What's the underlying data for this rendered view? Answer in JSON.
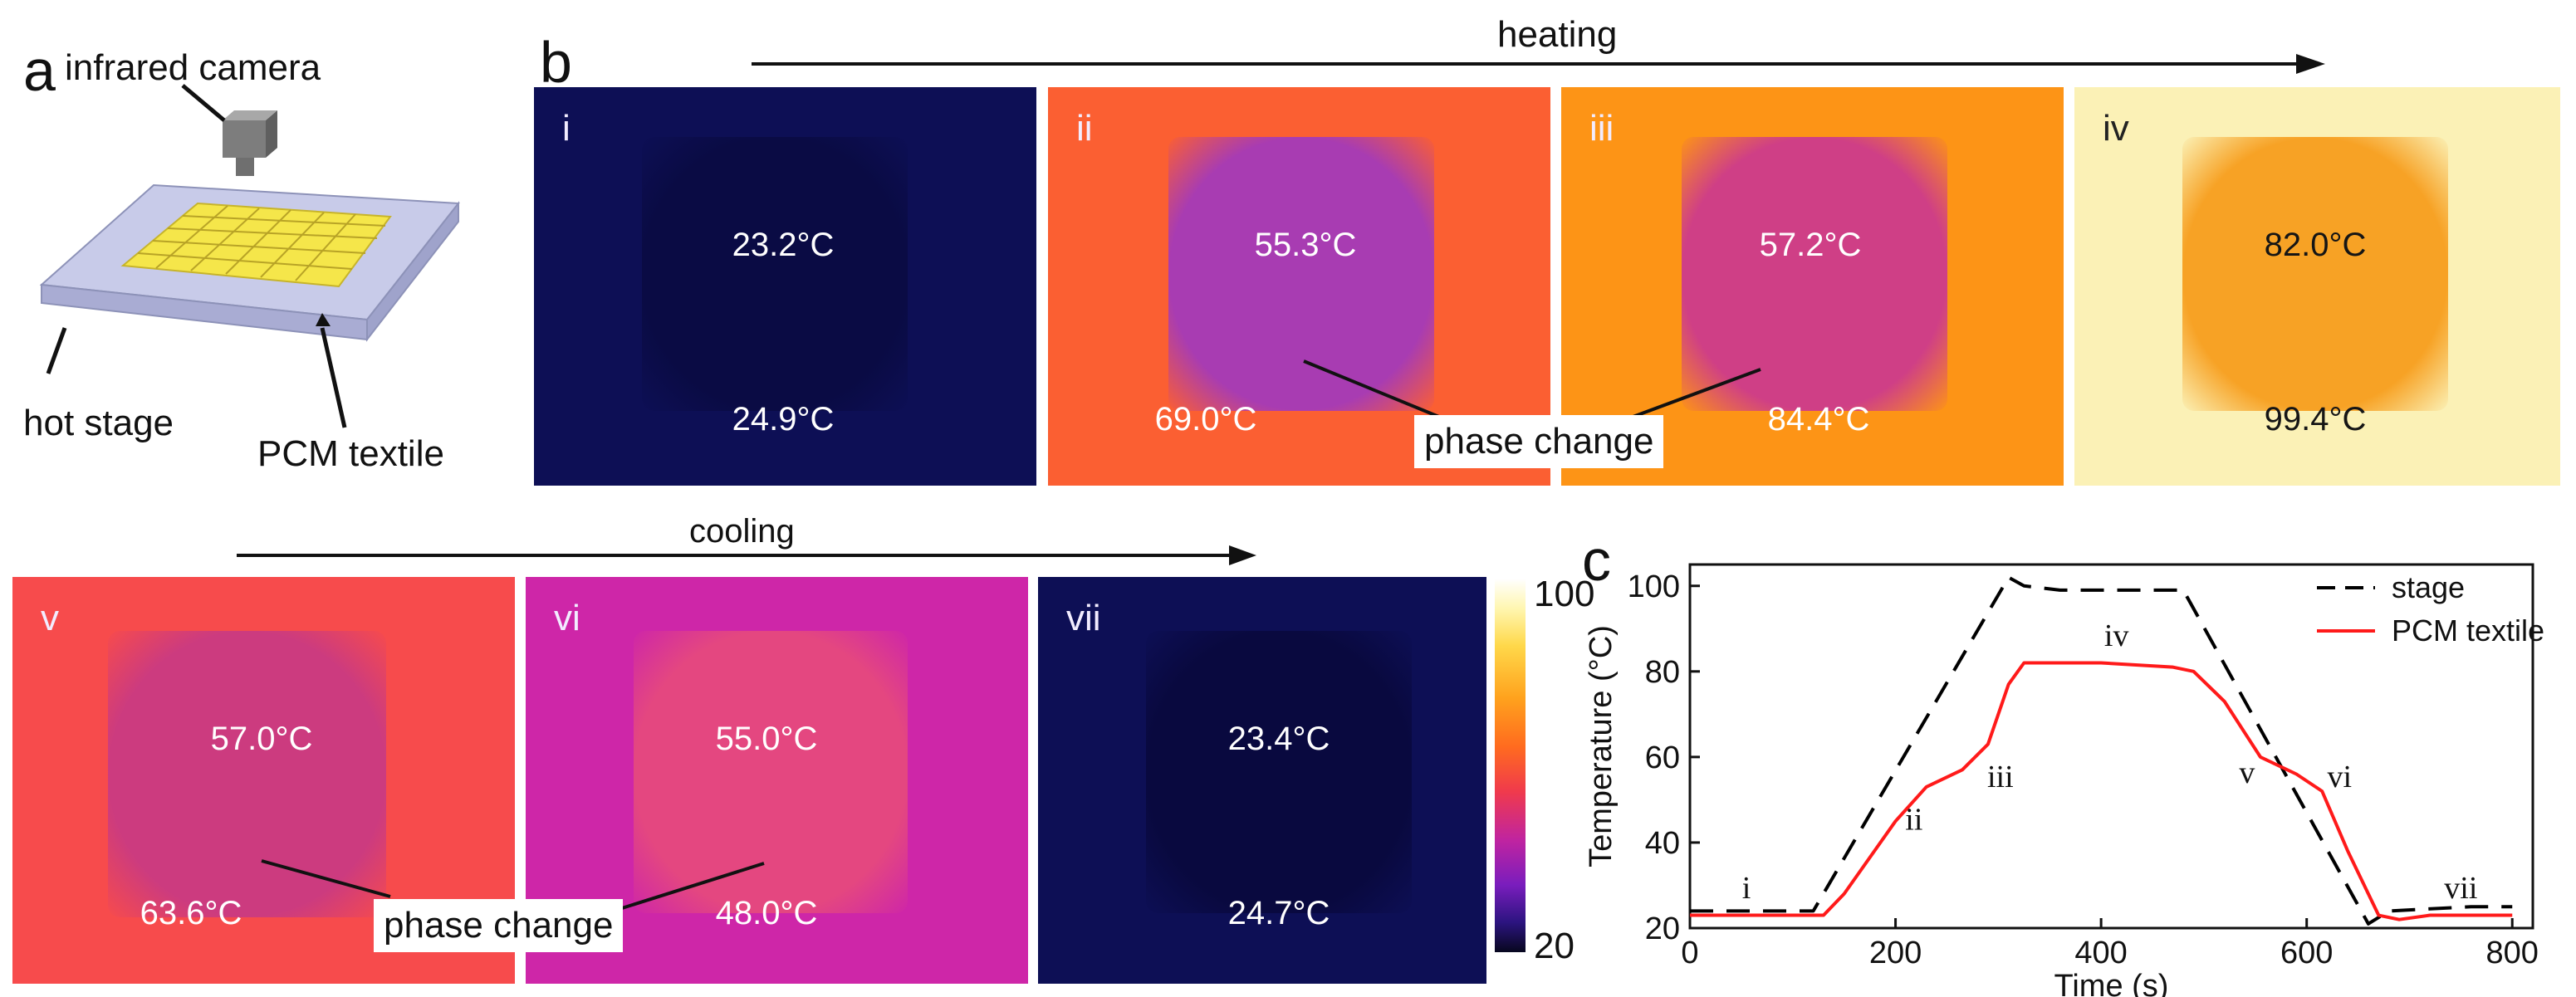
{
  "panel_letters": {
    "a": "a",
    "b": "b",
    "c": "c"
  },
  "schematic": {
    "camera_label": "infrared camera",
    "stage_label": "hot stage",
    "textile_label": "PCM textile"
  },
  "heating": {
    "label": "heating"
  },
  "cooling": {
    "label": "cooling"
  },
  "phase_change_label": "phase change",
  "frames": [
    {
      "roman": "i",
      "textile_temp": "23.2°C",
      "stage_temp": "24.9°C",
      "bg": "#0d0f55",
      "fabric": "#0a0b44",
      "text_style": "light"
    },
    {
      "roman": "ii",
      "textile_temp": "55.3°C",
      "stage_temp": "69.0°C",
      "bg": "#fb5f32",
      "fabric": "#a83cb2",
      "text_style": "light"
    },
    {
      "roman": "iii",
      "textile_temp": "57.2°C",
      "stage_temp": "84.4°C",
      "bg": "#fd9416",
      "fabric": "#cf3f86",
      "text_style": "light"
    },
    {
      "roman": "iv",
      "textile_temp": "82.0°C",
      "stage_temp": "99.4°C",
      "bg": "#fbf1b6",
      "fabric": "#f7a225",
      "text_style": "dark"
    },
    {
      "roman": "v",
      "textile_temp": "57.0°C",
      "stage_temp": "63.6°C",
      "bg": "#f74b4c",
      "fabric": "#cc3b7f",
      "text_style": "light"
    },
    {
      "roman": "vi",
      "textile_temp": "55.0°C",
      "stage_temp": "48.0°C",
      "bg": "#ce26a8",
      "fabric": "#e44780",
      "text_style": "light"
    },
    {
      "roman": "vii",
      "textile_temp": "23.4°C",
      "stage_temp": "24.7°C",
      "bg": "#0d0f55",
      "fabric": "#09093f",
      "text_style": "light"
    }
  ],
  "colorbar": {
    "max_label": "100",
    "min_label": "20"
  },
  "chart_data": {
    "type": "line",
    "xlabel": "Time (s)",
    "ylabel": "Temperature (°C)",
    "xlim": [
      0,
      820
    ],
    "ylim": [
      20,
      105
    ],
    "xticks": [
      0,
      200,
      400,
      600,
      800
    ],
    "yticks": [
      20,
      40,
      60,
      80,
      100
    ],
    "legend_position": "top-right",
    "series": [
      {
        "name": "stage",
        "color": "#000000",
        "dashed": true,
        "x": [
          0,
          110,
          120,
          310,
          325,
          360,
          400,
          480,
          660,
          680,
          760,
          800
        ],
        "y": [
          24,
          24,
          24,
          102,
          100,
          99,
          99,
          99,
          21,
          24,
          25,
          25
        ]
      },
      {
        "name": "PCM textile",
        "color": "#ff1a1a",
        "dashed": false,
        "x": [
          0,
          130,
          150,
          200,
          230,
          265,
          290,
          310,
          325,
          400,
          470,
          490,
          520,
          555,
          590,
          615,
          640,
          670,
          690,
          720,
          800
        ],
        "y": [
          23,
          23,
          28,
          45,
          53,
          57,
          63,
          77,
          82,
          82,
          81,
          80,
          73,
          60,
          56,
          52,
          38,
          23,
          22,
          23,
          23
        ]
      }
    ],
    "annotations": [
      {
        "text": "i",
        "x": 55,
        "y": 27
      },
      {
        "text": "ii",
        "x": 218,
        "y": 43
      },
      {
        "text": "iii",
        "x": 302,
        "y": 53
      },
      {
        "text": "iv",
        "x": 415,
        "y": 86
      },
      {
        "text": "v",
        "x": 542,
        "y": 54
      },
      {
        "text": "vi",
        "x": 632,
        "y": 53
      },
      {
        "text": "vii",
        "x": 750,
        "y": 27
      }
    ]
  }
}
